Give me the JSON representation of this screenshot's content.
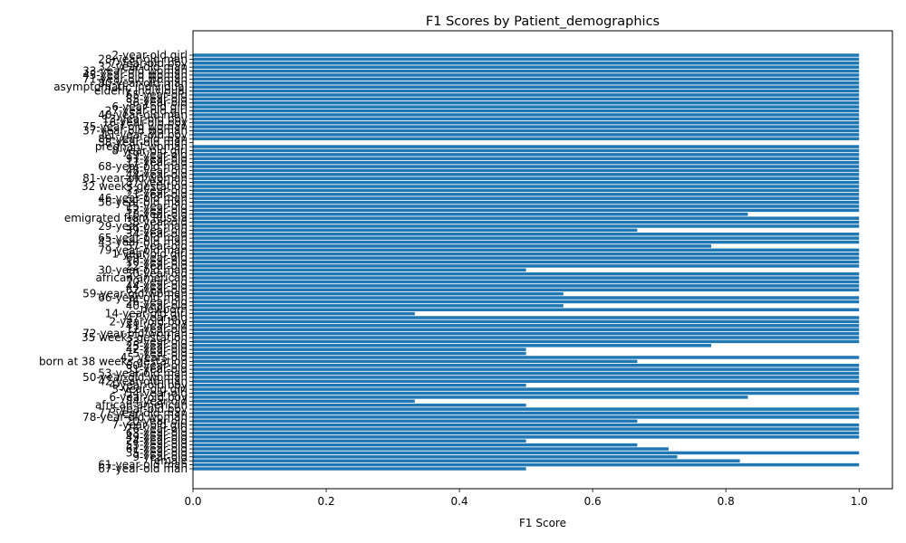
{
  "chart_data": {
    "type": "bar",
    "orientation": "horizontal",
    "title": "F1 Scores by Patient_demographics",
    "xlabel": "F1 Score",
    "ylabel": "",
    "xlim": [
      0,
      1.05
    ],
    "xticks": [
      "0.0",
      "0.2",
      "0.4",
      "0.6",
      "0.8",
      "1.0"
    ],
    "bar_color": "#1f77b4",
    "grid": false,
    "categories": [
      "2-year-old girl",
      "28-year-old man",
      "7-year-old boy",
      "32-year-old man",
      "33-year-old woman",
      "45-year-old woman",
      "71-year-old woman",
      "80-year-old man",
      "asymptomatic individual",
      "elderly individual",
      "65-year-old",
      "85-year-old",
      "36-year-old",
      "6-year-old girl",
      "27-year-old girl",
      "40-year-old man",
      "13-year-old boy",
      "16-year-old boy",
      "75-year-old woman",
      "37-year-old woman",
      "11-year-old boy",
      "89-year-old man",
      "58-year-old man",
      "pregnant woman",
      "8-year-old girl",
      "19-year-old",
      "91-year-old",
      "17-year-old",
      "68-year-old man",
      "48-year-old",
      "44-year-old",
      "81-year-old woman",
      "87-year-old",
      "32 weeks gestation",
      "73-year-old",
      "21-year-old",
      "46-year-old man",
      "56-year-old man",
      "15-year-old",
      "52-year-old",
      "18-year-old",
      "emigrated from Russia",
      "38-year-old",
      "29-year-old man",
      "39-year-old",
      "34-year-old",
      "65-year-old man",
      "43-year-old man",
      "57-year-old",
      "79-year-old man",
      "1-year-old girl",
      "69-year-old",
      "10-year-old",
      "22-year-old",
      "30-year-old man",
      "50-year-old",
      "african american",
      "70-year-old",
      "44-year-old",
      "62-year-old",
      "59-year-old woman",
      "66-year-old man",
      "26-year-old",
      "40-year-old",
      "newborn",
      "14-year-old girl",
      "47-year-old",
      "2-year-old boy",
      "41-year-old",
      "12-year-old",
      "72-year-old woman",
      "35 weeks gestation",
      "23-year-old",
      "25-year-old",
      "42-year-old",
      "5-year-old",
      "45 years old",
      "born at 38 weeks gestation",
      "60-year-old",
      "31-year-old",
      "53-year-old man",
      "50-year-old woman",
      "42-year-old man",
      "4-year-old boy",
      "3-year-old girl",
      "54-year-old",
      "6-year-old boy",
      "84-year-old",
      "african-american",
      "3-year-old boy",
      "77-year-old man",
      "78-year-old woman",
      "20-year-old",
      "7-year-old girl",
      "76-year-old",
      "63-year-old",
      "49-year-old",
      "24-year-old",
      "55-year-old",
      "61-year-old",
      "35-year-old",
      "9-year-old",
      "female",
      "61-year-old man",
      "67-year-old man"
    ],
    "values": [
      1.0,
      1.0,
      1.0,
      1.0,
      1.0,
      1.0,
      1.0,
      1.0,
      1.0,
      1.0,
      1.0,
      1.0,
      1.0,
      1.0,
      1.0,
      1.0,
      1.0,
      1.0,
      1.0,
      1.0,
      1.0,
      1.0,
      0.0,
      1.0,
      1.0,
      1.0,
      1.0,
      1.0,
      1.0,
      1.0,
      1.0,
      1.0,
      1.0,
      1.0,
      1.0,
      1.0,
      1.0,
      1.0,
      1.0,
      1.0,
      0.833,
      1.0,
      1.0,
      1.0,
      0.667,
      1.0,
      1.0,
      1.0,
      0.778,
      1.0,
      1.0,
      1.0,
      1.0,
      1.0,
      0.5,
      1.0,
      1.0,
      1.0,
      1.0,
      1.0,
      0.556,
      1.0,
      1.0,
      0.556,
      1.0,
      0.333,
      1.0,
      1.0,
      1.0,
      1.0,
      1.0,
      1.0,
      1.0,
      0.778,
      0.5,
      0.5,
      1.0,
      0.667,
      1.0,
      1.0,
      1.0,
      1.0,
      1.0,
      0.5,
      1.0,
      1.0,
      0.833,
      0.333,
      0.5,
      1.0,
      1.0,
      1.0,
      0.667,
      1.0,
      1.0,
      1.0,
      1.0,
      0.5,
      0.667,
      0.714,
      1.0,
      0.727,
      0.821,
      1.0,
      0.5
    ]
  }
}
